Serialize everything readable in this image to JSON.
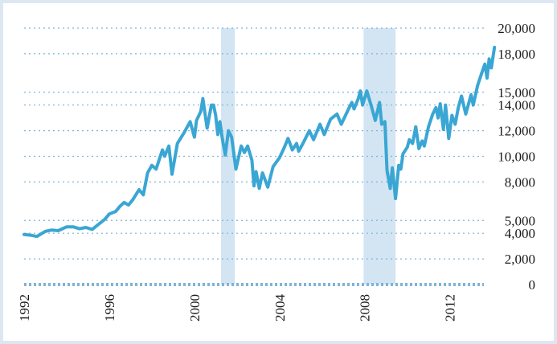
{
  "chart_data": {
    "type": "line",
    "title": "",
    "xlabel": "",
    "ylabel": "",
    "xlim": [
      1992,
      2013.6
    ],
    "ylim": [
      0,
      20000
    ],
    "grid": true,
    "legend": "none",
    "x_ticks": [
      {
        "value": 1992,
        "label": "1992"
      },
      {
        "value": 1996,
        "label": "1996"
      },
      {
        "value": 2000,
        "label": "2000"
      },
      {
        "value": 2004,
        "label": "2004"
      },
      {
        "value": 2008,
        "label": "2008"
      },
      {
        "value": 2012,
        "label": "2012"
      }
    ],
    "y_ticks": [
      {
        "value": 0,
        "label": "0"
      },
      {
        "value": 2000,
        "label": "2,000"
      },
      {
        "value": 4000,
        "label": "4,000"
      },
      {
        "value": 5000,
        "label": "5,000"
      },
      {
        "value": 8000,
        "label": "8,000"
      },
      {
        "value": 10000,
        "label": "10,000"
      },
      {
        "value": 12000,
        "label": "12,000"
      },
      {
        "value": 14000,
        "label": "14,000"
      },
      {
        "value": 15000,
        "label": "15,000"
      },
      {
        "value": 18000,
        "label": "18,000"
      },
      {
        "value": 20000,
        "label": "20,000"
      }
    ],
    "shaded_periods": [
      {
        "start": 2001.25,
        "end": 2001.9
      },
      {
        "start": 2007.95,
        "end": 2009.45
      }
    ],
    "series": [
      {
        "color": "#3aa6d4",
        "points": [
          [
            1992.0,
            3900
          ],
          [
            1992.3,
            3850
          ],
          [
            1992.6,
            3750
          ],
          [
            1993.0,
            4150
          ],
          [
            1993.3,
            4250
          ],
          [
            1993.6,
            4200
          ],
          [
            1994.0,
            4500
          ],
          [
            1994.3,
            4500
          ],
          [
            1994.6,
            4350
          ],
          [
            1994.9,
            4450
          ],
          [
            1995.2,
            4300
          ],
          [
            1995.5,
            4700
          ],
          [
            1995.8,
            5100
          ],
          [
            1996.0,
            5500
          ],
          [
            1996.3,
            5700
          ],
          [
            1996.5,
            6100
          ],
          [
            1996.7,
            6400
          ],
          [
            1996.9,
            6200
          ],
          [
            1997.1,
            6600
          ],
          [
            1997.4,
            7400
          ],
          [
            1997.6,
            7000
          ],
          [
            1997.8,
            8700
          ],
          [
            1998.0,
            9300
          ],
          [
            1998.2,
            9000
          ],
          [
            1998.5,
            10500
          ],
          [
            1998.6,
            10000
          ],
          [
            1998.8,
            10800
          ],
          [
            1998.95,
            8600
          ],
          [
            1999.2,
            11000
          ],
          [
            1999.5,
            11800
          ],
          [
            1999.8,
            12700
          ],
          [
            2000.0,
            11500
          ],
          [
            2000.1,
            12800
          ],
          [
            2000.3,
            13500
          ],
          [
            2000.4,
            14500
          ],
          [
            2000.6,
            12200
          ],
          [
            2000.8,
            14000
          ],
          [
            2000.9,
            14000
          ],
          [
            2001.0,
            13200
          ],
          [
            2001.1,
            11700
          ],
          [
            2001.2,
            12700
          ],
          [
            2001.3,
            11500
          ],
          [
            2001.45,
            10100
          ],
          [
            2001.6,
            12000
          ],
          [
            2001.75,
            11500
          ],
          [
            2001.95,
            9000
          ],
          [
            2002.1,
            10100
          ],
          [
            2002.2,
            10800
          ],
          [
            2002.35,
            10300
          ],
          [
            2002.5,
            10800
          ],
          [
            2002.7,
            9700
          ],
          [
            2002.8,
            7700
          ],
          [
            2002.9,
            8800
          ],
          [
            2003.05,
            7500
          ],
          [
            2003.2,
            8700
          ],
          [
            2003.45,
            7600
          ],
          [
            2003.7,
            9200
          ],
          [
            2004.0,
            9900
          ],
          [
            2004.2,
            10600
          ],
          [
            2004.4,
            11400
          ],
          [
            2004.6,
            10500
          ],
          [
            2004.8,
            11000
          ],
          [
            2004.9,
            10400
          ],
          [
            2005.1,
            11000
          ],
          [
            2005.4,
            12000
          ],
          [
            2005.6,
            11300
          ],
          [
            2005.9,
            12500
          ],
          [
            2006.1,
            11700
          ],
          [
            2006.4,
            12900
          ],
          [
            2006.7,
            13300
          ],
          [
            2006.9,
            12500
          ],
          [
            2007.1,
            13200
          ],
          [
            2007.3,
            13900
          ],
          [
            2007.4,
            14200
          ],
          [
            2007.5,
            13700
          ],
          [
            2007.7,
            14500
          ],
          [
            2007.8,
            15100
          ],
          [
            2007.9,
            14000
          ],
          [
            2008.1,
            15100
          ],
          [
            2008.3,
            14000
          ],
          [
            2008.5,
            12800
          ],
          [
            2008.7,
            14200
          ],
          [
            2008.8,
            12500
          ],
          [
            2008.95,
            12700
          ],
          [
            2009.05,
            8900
          ],
          [
            2009.2,
            7500
          ],
          [
            2009.3,
            9100
          ],
          [
            2009.45,
            6700
          ],
          [
            2009.6,
            9300
          ],
          [
            2009.7,
            9000
          ],
          [
            2009.8,
            10200
          ],
          [
            2010.0,
            10700
          ],
          [
            2010.1,
            11300
          ],
          [
            2010.25,
            11000
          ],
          [
            2010.4,
            12300
          ],
          [
            2010.55,
            10600
          ],
          [
            2010.7,
            11200
          ],
          [
            2010.8,
            10800
          ],
          [
            2011.0,
            12300
          ],
          [
            2011.2,
            13300
          ],
          [
            2011.35,
            13800
          ],
          [
            2011.45,
            13000
          ],
          [
            2011.55,
            14100
          ],
          [
            2011.7,
            12100
          ],
          [
            2011.8,
            14000
          ],
          [
            2011.95,
            11400
          ],
          [
            2012.1,
            13200
          ],
          [
            2012.25,
            12500
          ],
          [
            2012.4,
            13800
          ],
          [
            2012.55,
            14700
          ],
          [
            2012.75,
            13300
          ],
          [
            2013.0,
            14800
          ],
          [
            2013.1,
            14000
          ],
          [
            2013.3,
            15500
          ],
          [
            2013.5,
            16500
          ],
          [
            2013.65,
            17200
          ],
          [
            2013.75,
            16100
          ],
          [
            2013.85,
            17600
          ],
          [
            2013.95,
            16900
          ],
          [
            2014.1,
            18500
          ]
        ]
      }
    ]
  }
}
